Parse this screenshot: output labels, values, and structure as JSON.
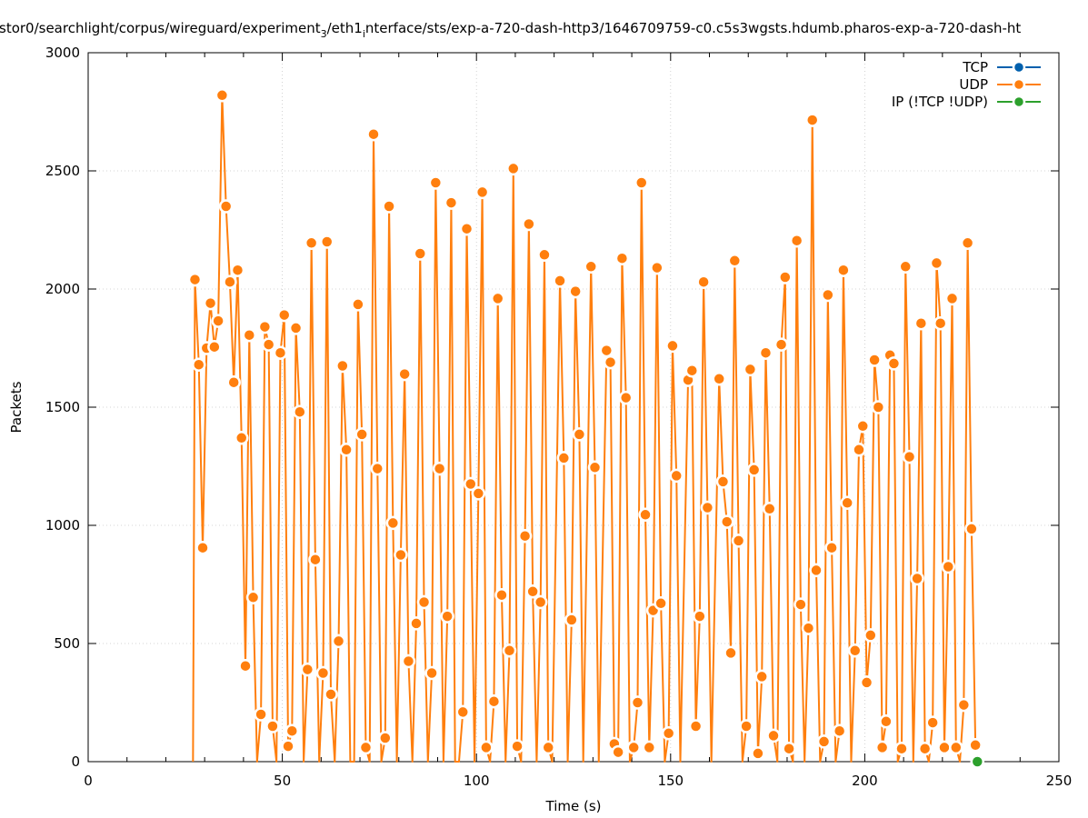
{
  "chart_data": {
    "type": "line",
    "title_before_sub": "stor0/searchlight/corpus/wireguard/experiment",
    "title_sub": "3",
    "title_after_sub": "/eth1",
    "title_sub2": "i",
    "title_after_sub2": "nterface/sts/exp-a-720-dash-http3/1646709759-c0.c5s3wgsts.hdumb.pharos-exp-a-720-dash-ht",
    "xlabel": "Time (s)",
    "ylabel": "Packets",
    "xlim": [
      0,
      250
    ],
    "ylim": [
      0,
      3000
    ],
    "x_ticks": [
      0,
      50,
      100,
      150,
      200,
      250
    ],
    "x_tick_labels": [
      "0",
      "50",
      "100",
      "150",
      "200",
      "250"
    ],
    "y_ticks": [
      0,
      500,
      1000,
      1500,
      2000,
      2500,
      3000
    ],
    "y_tick_labels": [
      "0",
      "500",
      "1000",
      "1500",
      "2000",
      "2500",
      "3000"
    ],
    "grid": true,
    "legend_position": "top-right",
    "series": [
      {
        "name": "TCP",
        "color": "#0060ad",
        "points": []
      },
      {
        "name": "UDP",
        "color": "#ff7f0e",
        "points": [
          [
            27,
            0
          ],
          [
            27.5,
            2040
          ],
          [
            28.5,
            1680
          ],
          [
            29.5,
            905
          ],
          [
            30.5,
            1750
          ],
          [
            31.5,
            1940
          ],
          [
            32.5,
            1755
          ],
          [
            33.5,
            1865
          ],
          [
            34.5,
            2820
          ],
          [
            35.5,
            2350
          ],
          [
            36.5,
            2030
          ],
          [
            37.5,
            1605
          ],
          [
            38.5,
            2080
          ],
          [
            39.5,
            1370
          ],
          [
            40.5,
            405
          ],
          [
            41.5,
            1805
          ],
          [
            42.5,
            695
          ],
          [
            43.5,
            0
          ],
          [
            44.5,
            200
          ],
          [
            45.5,
            1840
          ],
          [
            46.5,
            1765
          ],
          [
            47.5,
            150
          ],
          [
            48.5,
            0
          ],
          [
            49.5,
            1730
          ],
          [
            50.5,
            1890
          ],
          [
            51.5,
            65
          ],
          [
            52.5,
            130
          ],
          [
            53.5,
            1835
          ],
          [
            54.5,
            1480
          ],
          [
            55.5,
            0
          ],
          [
            56.5,
            390
          ],
          [
            57.5,
            2195
          ],
          [
            58.5,
            855
          ],
          [
            59.5,
            0
          ],
          [
            60.5,
            375
          ],
          [
            61.5,
            2200
          ],
          [
            62.5,
            285
          ],
          [
            63.5,
            0
          ],
          [
            64.5,
            510
          ],
          [
            65.5,
            1675
          ],
          [
            66.5,
            1320
          ],
          [
            67.5,
            0
          ],
          [
            68.5,
            0
          ],
          [
            69.5,
            1935
          ],
          [
            70.5,
            1385
          ],
          [
            71.5,
            60
          ],
          [
            72.5,
            0
          ],
          [
            73.5,
            2655
          ],
          [
            74.5,
            1240
          ],
          [
            75.5,
            0
          ],
          [
            76.5,
            100
          ],
          [
            77.5,
            2350
          ],
          [
            78.5,
            1010
          ],
          [
            79.5,
            0
          ],
          [
            80.5,
            875
          ],
          [
            81.5,
            1640
          ],
          [
            82.5,
            425
          ],
          [
            83.5,
            0
          ],
          [
            84.5,
            585
          ],
          [
            85.5,
            2150
          ],
          [
            86.5,
            675
          ],
          [
            87.5,
            0
          ],
          [
            88.5,
            375
          ],
          [
            89.5,
            2450
          ],
          [
            90.5,
            1240
          ],
          [
            91.5,
            0
          ],
          [
            92.5,
            615
          ],
          [
            93.5,
            2365
          ],
          [
            94.5,
            0
          ],
          [
            95.5,
            0
          ],
          [
            96.5,
            210
          ],
          [
            97.5,
            2255
          ],
          [
            98.5,
            1175
          ],
          [
            99.5,
            0
          ],
          [
            100.5,
            1135
          ],
          [
            101.5,
            2410
          ],
          [
            102.5,
            60
          ],
          [
            103.5,
            0
          ],
          [
            104.5,
            255
          ],
          [
            105.5,
            1960
          ],
          [
            106.5,
            705
          ],
          [
            107.5,
            0
          ],
          [
            108.5,
            470
          ],
          [
            109.5,
            2510
          ],
          [
            110.5,
            65
          ],
          [
            111.5,
            0
          ],
          [
            112.5,
            955
          ],
          [
            113.5,
            2275
          ],
          [
            114.5,
            720
          ],
          [
            115.5,
            0
          ],
          [
            116.5,
            675
          ],
          [
            117.5,
            2145
          ],
          [
            118.5,
            60
          ],
          [
            119.5,
            0
          ],
          [
            121.5,
            2035
          ],
          [
            122.5,
            1285
          ],
          [
            123.5,
            0
          ],
          [
            124.5,
            600
          ],
          [
            125.5,
            1990
          ],
          [
            126.5,
            1385
          ],
          [
            127.5,
            0
          ],
          [
            129.5,
            2095
          ],
          [
            130.5,
            1245
          ],
          [
            131.5,
            0
          ],
          [
            133.5,
            1740
          ],
          [
            134.5,
            1690
          ],
          [
            135.5,
            75
          ],
          [
            136.5,
            40
          ],
          [
            137.5,
            2130
          ],
          [
            138.5,
            1540
          ],
          [
            139.5,
            0
          ],
          [
            140.5,
            60
          ],
          [
            141.5,
            250
          ],
          [
            142.5,
            2450
          ],
          [
            143.5,
            1045
          ],
          [
            144.5,
            60
          ],
          [
            145.5,
            640
          ],
          [
            146.5,
            2090
          ],
          [
            147.5,
            670
          ],
          [
            148.5,
            0
          ],
          [
            149.5,
            120
          ],
          [
            150.5,
            1760
          ],
          [
            151.5,
            1210
          ],
          [
            152.5,
            0
          ],
          [
            154.5,
            1615
          ],
          [
            155.5,
            1655
          ],
          [
            156.5,
            150
          ],
          [
            157.5,
            615
          ],
          [
            158.5,
            2030
          ],
          [
            159.5,
            1075
          ],
          [
            160.5,
            0
          ],
          [
            162.5,
            1620
          ],
          [
            163.5,
            1185
          ],
          [
            164.5,
            1015
          ],
          [
            165.5,
            460
          ],
          [
            166.5,
            2120
          ],
          [
            167.5,
            935
          ],
          [
            168.5,
            0
          ],
          [
            169.5,
            150
          ],
          [
            170.5,
            1660
          ],
          [
            171.5,
            1235
          ],
          [
            172.5,
            35
          ],
          [
            173.5,
            360
          ],
          [
            174.5,
            1730
          ],
          [
            175.5,
            1070
          ],
          [
            176.5,
            110
          ],
          [
            177.5,
            0
          ],
          [
            178.5,
            1765
          ],
          [
            179.5,
            2050
          ],
          [
            180.5,
            55
          ],
          [
            181.5,
            0
          ],
          [
            182.5,
            2205
          ],
          [
            183.5,
            665
          ],
          [
            184.5,
            0
          ],
          [
            185.5,
            565
          ],
          [
            186.5,
            2715
          ],
          [
            187.5,
            810
          ],
          [
            188.5,
            0
          ],
          [
            189.5,
            85
          ],
          [
            190.5,
            1975
          ],
          [
            191.5,
            905
          ],
          [
            192.5,
            0
          ],
          [
            193.5,
            130
          ],
          [
            194.5,
            2080
          ],
          [
            195.5,
            1095
          ],
          [
            196.5,
            0
          ],
          [
            197.5,
            470
          ],
          [
            198.5,
            1320
          ],
          [
            199.5,
            1420
          ],
          [
            200.5,
            335
          ],
          [
            201.5,
            535
          ],
          [
            202.5,
            1700
          ],
          [
            203.5,
            1500
          ],
          [
            204.5,
            60
          ],
          [
            205.5,
            170
          ],
          [
            206.5,
            1720
          ],
          [
            207.5,
            1685
          ],
          [
            208.5,
            0
          ],
          [
            209.5,
            55
          ],
          [
            210.5,
            2095
          ],
          [
            211.5,
            1290
          ],
          [
            212.5,
            0
          ],
          [
            213.5,
            775
          ],
          [
            214.5,
            1855
          ],
          [
            215.5,
            55
          ],
          [
            216.5,
            0
          ],
          [
            217.5,
            165
          ],
          [
            218.5,
            2110
          ],
          [
            219.5,
            1855
          ],
          [
            220.5,
            60
          ],
          [
            221.5,
            825
          ],
          [
            222.5,
            1960
          ],
          [
            223.5,
            60
          ],
          [
            224.5,
            0
          ],
          [
            225.5,
            240
          ],
          [
            226.5,
            2195
          ],
          [
            227.5,
            985
          ],
          [
            228.5,
            70
          ]
        ]
      },
      {
        "name": "IP (!TCP  !UDP)",
        "color": "#2ca02c",
        "points": [
          [
            229,
            0
          ]
        ]
      }
    ]
  }
}
